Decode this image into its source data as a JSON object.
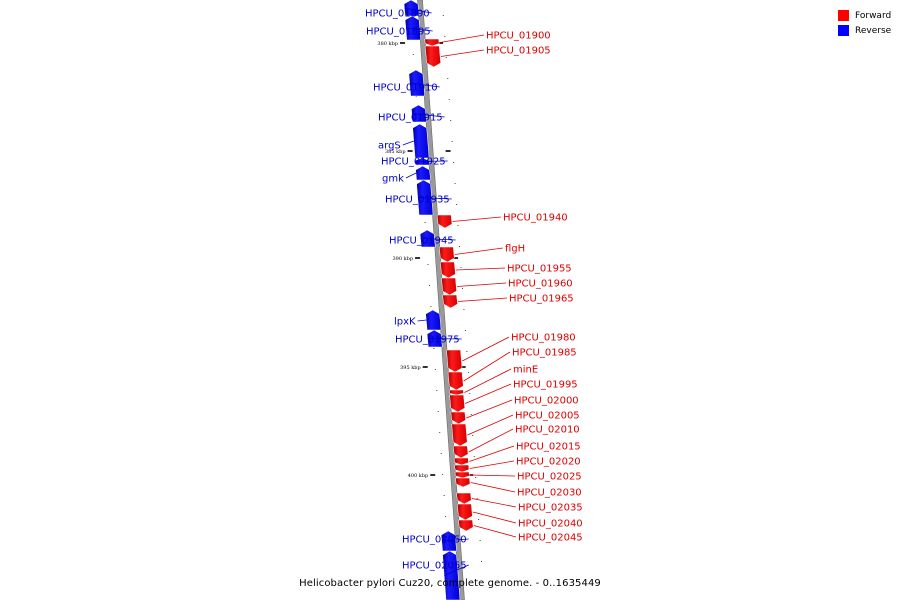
{
  "legend": {
    "forward_label": "Forward",
    "reverse_label": "Reverse",
    "forward_color": "#ff0000",
    "reverse_color": "#0000ff"
  },
  "caption": "Helicobacter pylori Cuz20, complete genome. - 0..1635449",
  "scale_labels": [
    "380 kbp",
    "385 kbp",
    "390 kbp",
    "395 kbp",
    "400 kbp"
  ],
  "genes": [
    {
      "name": "HPCU_01890",
      "strand": "reverse"
    },
    {
      "name": "HPCU_01895",
      "strand": "reverse"
    },
    {
      "name": "HPCU_01900",
      "strand": "forward"
    },
    {
      "name": "HPCU_01905",
      "strand": "forward"
    },
    {
      "name": "HPCU_01910",
      "strand": "reverse"
    },
    {
      "name": "HPCU_01915",
      "strand": "reverse"
    },
    {
      "name": "argS",
      "strand": "reverse"
    },
    {
      "name": "HPCU_01925",
      "strand": "reverse"
    },
    {
      "name": "gmk",
      "strand": "reverse"
    },
    {
      "name": "HPCU_01935",
      "strand": "reverse"
    },
    {
      "name": "HPCU_01940",
      "strand": "forward"
    },
    {
      "name": "HPCU_01945",
      "strand": "reverse"
    },
    {
      "name": "flgH",
      "strand": "forward"
    },
    {
      "name": "HPCU_01955",
      "strand": "forward"
    },
    {
      "name": "HPCU_01960",
      "strand": "forward"
    },
    {
      "name": "HPCU_01965",
      "strand": "forward"
    },
    {
      "name": "lpxK",
      "strand": "reverse"
    },
    {
      "name": "HPCU_01975",
      "strand": "reverse"
    },
    {
      "name": "HPCU_01980",
      "strand": "forward"
    },
    {
      "name": "HPCU_01985",
      "strand": "forward"
    },
    {
      "name": "minE",
      "strand": "forward"
    },
    {
      "name": "HPCU_01995",
      "strand": "forward"
    },
    {
      "name": "HPCU_02000",
      "strand": "forward"
    },
    {
      "name": "HPCU_02005",
      "strand": "forward"
    },
    {
      "name": "HPCU_02010",
      "strand": "forward"
    },
    {
      "name": "HPCU_02015",
      "strand": "forward"
    },
    {
      "name": "HPCU_02020",
      "strand": "forward"
    },
    {
      "name": "HPCU_02025",
      "strand": "forward"
    },
    {
      "name": "HPCU_02030",
      "strand": "forward"
    },
    {
      "name": "HPCU_02035",
      "strand": "forward"
    },
    {
      "name": "HPCU_02040",
      "strand": "forward"
    },
    {
      "name": "HPCU_02045",
      "strand": "forward"
    },
    {
      "name": "HPCU_02050",
      "strand": "reverse"
    },
    {
      "name": "HPCU_02055",
      "strand": "reverse"
    }
  ]
}
